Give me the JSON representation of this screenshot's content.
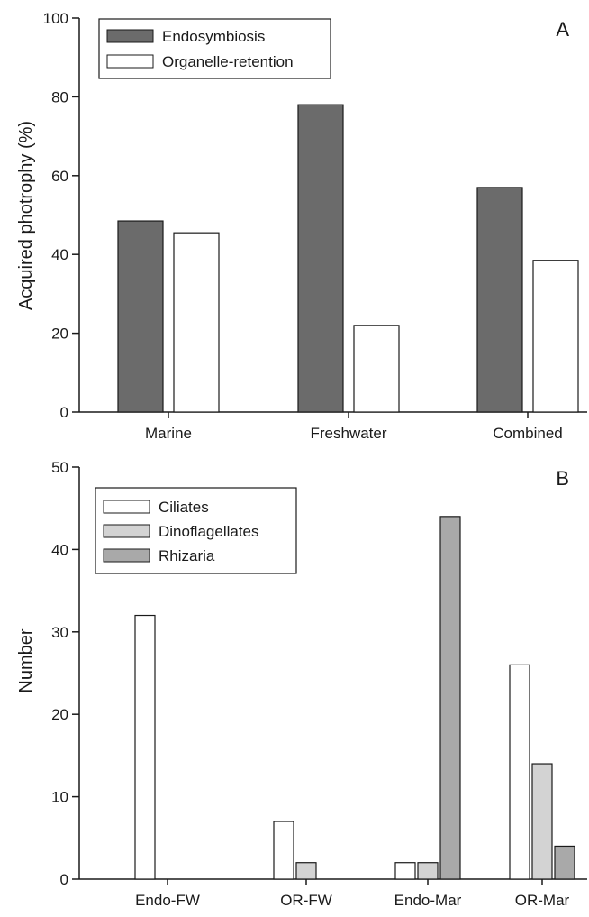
{
  "chart_data": [
    {
      "type": "bar",
      "panel_label": "A",
      "ylabel": "Acquired photrophy (%)",
      "xlabel": "",
      "ylim": [
        0,
        100
      ],
      "yticks": [
        0,
        20,
        40,
        60,
        80,
        100
      ],
      "categories": [
        "Marine",
        "Freshwater",
        "Combined"
      ],
      "series": [
        {
          "name": "Endosymbiosis",
          "color": "#6b6b6b",
          "values": [
            48.5,
            78,
            57
          ]
        },
        {
          "name": "Organelle-retention",
          "color": "#ffffff",
          "values": [
            45.5,
            22,
            38.5
          ]
        }
      ],
      "legend_position": "top-left",
      "grid": false
    },
    {
      "type": "bar",
      "panel_label": "B",
      "ylabel": "Number",
      "xlabel": "",
      "ylim": [
        0,
        50
      ],
      "yticks": [
        0,
        10,
        20,
        30,
        40,
        50
      ],
      "categories": [
        "Endo-FW",
        "OR-FW",
        "Endo-Mar",
        "OR-Mar"
      ],
      "series": [
        {
          "name": "Ciliates",
          "color": "#ffffff",
          "values": [
            32,
            7,
            2,
            26
          ]
        },
        {
          "name": "Dinoflagellates",
          "color": "#d3d3d3",
          "values": [
            0,
            2,
            2,
            14
          ]
        },
        {
          "name": "Rhizaria",
          "color": "#a9a9a9",
          "values": [
            0,
            0,
            44,
            4
          ]
        }
      ],
      "legend_position": "top-left",
      "grid": false
    }
  ]
}
